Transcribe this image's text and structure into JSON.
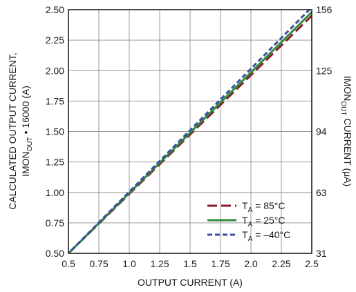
{
  "chart_data": {
    "type": "line",
    "xlabel": "OUTPUT CURRENT (A)",
    "ylabel_left_line1": "CALCULATED OUTPUT CURRENT,",
    "ylabel_left_line2": "IMON",
    "ylabel_left_sub": "OUT",
    "ylabel_left_tail": " • 16000 (A)",
    "ylabel_right": "IMON",
    "ylabel_right_sub": "OUT",
    "ylabel_right_tail": " CURRENT (μA)",
    "xlim": [
      0.5,
      2.5
    ],
    "ylim": [
      0.5,
      2.5
    ],
    "x_ticks": [
      "0.5",
      "0.75",
      "1.0",
      "1.25",
      "1.5",
      "1.75",
      "2.0",
      "2.25",
      "2.5"
    ],
    "y_ticks": [
      "0.50",
      "0.75",
      "1.00",
      "1.25",
      "1.50",
      "1.75",
      "2.00",
      "2.25",
      "2.50"
    ],
    "y2_ticks": [
      {
        "value": 0.5,
        "label": "31"
      },
      {
        "value": 1.0,
        "label": "63"
      },
      {
        "value": 1.5,
        "label": "94"
      },
      {
        "value": 2.0,
        "label": "125"
      },
      {
        "value": 2.5,
        "label": "156"
      }
    ],
    "grid": true,
    "legend_position": "bottom-right",
    "series": [
      {
        "name": "T",
        "name_sub": "A",
        "name_tail": " = 85°C",
        "color": "#8b1a2b",
        "dash": "long-dash",
        "x": [
          0.5,
          2.5
        ],
        "y": [
          0.5,
          2.45
        ]
      },
      {
        "name": "T",
        "name_sub": "A",
        "name_tail": " = 25°C",
        "color": "#2e8b3a",
        "dash": "solid",
        "x": [
          0.5,
          2.5
        ],
        "y": [
          0.5,
          2.48
        ]
      },
      {
        "name": "T",
        "name_sub": "A",
        "name_tail": " = –40°C",
        "color": "#3a4fa0",
        "dash": "short-dash",
        "x": [
          0.48,
          2.5
        ],
        "y": [
          0.48,
          2.52
        ]
      }
    ]
  }
}
